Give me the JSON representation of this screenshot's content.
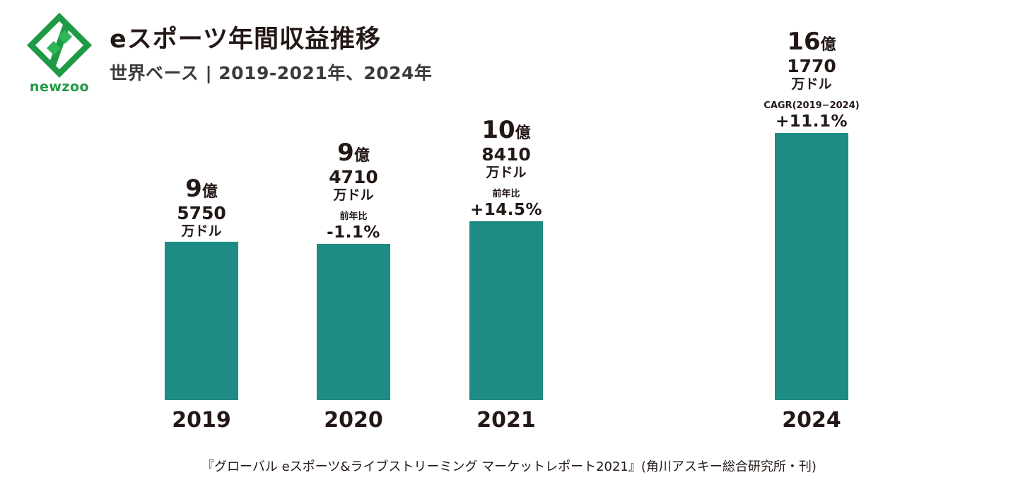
{
  "logo": {
    "text": "newzoo",
    "color": "#1e9a45"
  },
  "title": "eスポーツ年間収益推移",
  "subtitle": "世界ベース | 2019-2021年、2024年",
  "source": "『グローバル eスポーツ&ライブストリーミング マーケットレポート2021』(角川アスキー総合研究所・刊)",
  "bar_color": "#1e8b84",
  "chart_data": {
    "type": "bar",
    "categories": [
      "2019",
      "2020",
      "2021",
      "2024"
    ],
    "values": [
      95750,
      94710,
      108410,
      161770
    ],
    "value_unit": "万ドル",
    "title": "eスポーツ年間収益推移",
    "subtitle": "世界ベース | 2019-2021年、2024年",
    "ylim": [
      0,
      161770
    ],
    "grid": false,
    "bars": [
      {
        "year": "2019",
        "oku": "9",
        "oku_unit": "億",
        "man": "5750",
        "man_unit": "万ドル",
        "change_label": "",
        "change": ""
      },
      {
        "year": "2020",
        "oku": "9",
        "oku_unit": "億",
        "man": "4710",
        "man_unit": "万ドル",
        "change_label": "前年比",
        "change": "-1.1%"
      },
      {
        "year": "2021",
        "oku": "10",
        "oku_unit": "億",
        "man": "8410",
        "man_unit": "万ドル",
        "change_label": "前年比",
        "change": "+14.5%"
      },
      {
        "year": "2024",
        "oku": "16",
        "oku_unit": "億",
        "man": "1770",
        "man_unit": "万ドル",
        "change_label": "CAGR(2019−2024)",
        "change": "+11.1%"
      }
    ]
  }
}
